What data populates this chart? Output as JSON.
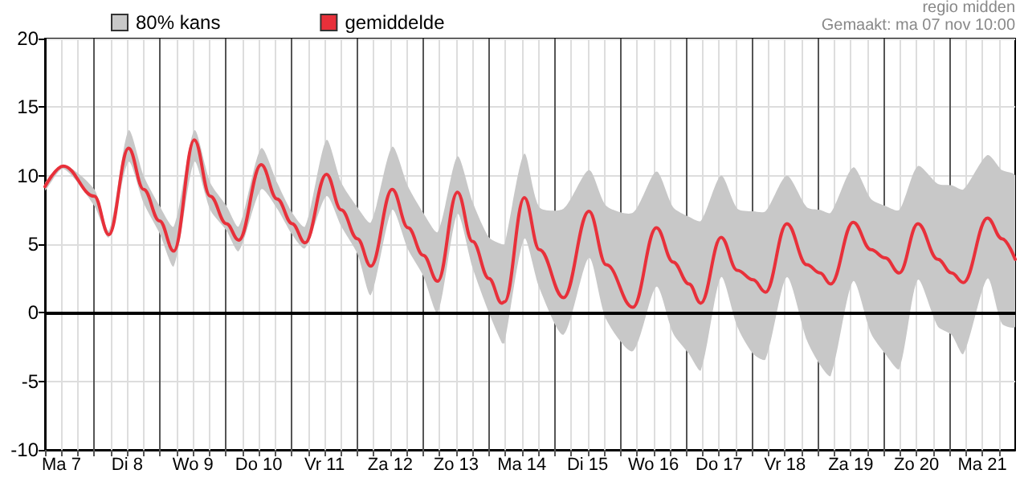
{
  "chart_data": {
    "type": "line",
    "annotations": [
      "regio midden",
      "Gemaakt: ma 07 nov 10:00"
    ],
    "x": [
      "--11-07T06:00",
      "--11-07T12:42",
      "--11-08T00:00",
      "--11-08T05:18",
      "--11-08T12:30",
      "--11-08T18:00",
      "--11-08T23:48",
      "--11-09T05:00",
      "--11-09T12:30",
      "--11-09T18:18",
      "--11-10T00:12",
      "--11-10T04:42",
      "--11-10T12:54",
      "--11-10T18:42",
      "--11-11T00:12",
      "--11-11T04:54",
      "--11-11T12:42",
      "--11-11T18:06",
      "--11-12T00:00",
      "--11-12T04:54",
      "--11-12T12:42",
      "--11-12T18:30",
      "--11-13T00:00",
      "--11-13T05:18",
      "--11-13T12:30",
      "--11-13T18:00",
      "--11-14T00:00",
      "--11-14T04:42",
      "--11-14T05:42",
      "--11-14T12:54",
      "--11-14T18:24",
      "--11-15T03:12",
      "--11-15T12:30",
      "--11-15T18:48",
      "--11-16T04:30",
      "--11-16T13:06",
      "--11-16T19:12",
      "--11-17T01:00",
      "--11-17T05:18",
      "--11-17T12:42",
      "--11-17T18:36",
      "--11-18T00:24",
      "--11-18T04:54",
      "--11-18T12:42",
      "--11-18T20:00",
      "--11-19T00:48",
      "--11-19T04:42",
      "--11-19T12:54",
      "--11-19T19:24",
      "--11-20T00:36",
      "--11-20T05:42",
      "--11-20T12:30",
      "--11-20T19:48",
      "--11-21T00:48",
      "--11-21T05:06",
      "--11-21T13:54",
      "--11-21T19:12",
      "--11-22T00:00"
    ],
    "series": [
      {
        "name": "80% kans",
        "type": "area",
        "color": "#c8c8c8",
        "values": [
          null,
          null,
          null,
          null,
          null,
          null,
          null,
          null,
          null,
          null,
          null,
          null,
          null,
          null,
          null,
          null,
          null,
          null,
          null,
          null,
          null,
          null,
          null,
          null,
          null,
          null,
          null,
          null,
          null,
          null,
          null,
          null,
          null,
          null,
          null,
          null,
          null,
          null,
          null,
          null,
          null,
          null,
          null,
          null,
          null,
          null,
          null,
          null,
          null,
          null,
          null,
          null,
          null,
          null,
          null,
          null,
          null,
          null
        ],
        "lower": [
          8.9,
          10.5,
          7.8,
          5.5,
          11.0,
          8.0,
          5.8,
          3.4,
          11.0,
          7.5,
          6.0,
          4.5,
          9.0,
          7.6,
          5.7,
          4.7,
          8.5,
          6.3,
          4.3,
          1.3,
          7.5,
          4.6,
          2.7,
          0.0,
          7.2,
          3.3,
          0.0,
          -2.2,
          -2.2,
          5.4,
          1.8,
          -1.6,
          4.0,
          -0.5,
          -2.8,
          1.9,
          -1.5,
          -3.0,
          -4.2,
          2.6,
          -1.0,
          -3.0,
          -3.4,
          2.6,
          -2.0,
          -3.8,
          -4.6,
          2.3,
          -1.5,
          -3.0,
          -4.1,
          2.4,
          -1.0,
          -1.6,
          -3.0,
          2.5,
          -0.8,
          -1.0
        ],
        "upper": [
          9.5,
          10.8,
          9.0,
          6.0,
          13.3,
          10.0,
          7.8,
          6.3,
          13.3,
          9.5,
          7.8,
          6.3,
          12.0,
          9.5,
          7.3,
          6.3,
          12.6,
          9.5,
          7.7,
          6.6,
          12.1,
          9.2,
          7.3,
          5.9,
          11.4,
          8.1,
          5.5,
          5.0,
          5.0,
          11.6,
          7.7,
          7.6,
          10.4,
          7.8,
          7.3,
          10.3,
          7.7,
          7.0,
          6.7,
          10.0,
          7.6,
          7.4,
          7.4,
          10.0,
          7.7,
          7.5,
          7.3,
          10.6,
          8.3,
          7.8,
          7.5,
          10.7,
          9.4,
          9.3,
          9.0,
          11.5,
          10.4,
          10.0
        ]
      },
      {
        "name": "gemiddelde",
        "color": "#e8303a",
        "values": [
          9.2,
          10.7,
          8.5,
          5.7,
          12.0,
          9.0,
          6.7,
          4.5,
          12.6,
          8.5,
          6.5,
          5.3,
          10.8,
          8.3,
          6.5,
          5.1,
          10.1,
          7.5,
          5.4,
          3.4,
          9.0,
          6.2,
          4.2,
          2.3,
          8.8,
          5.2,
          2.5,
          0.7,
          0.8,
          8.4,
          4.6,
          1.1,
          7.4,
          3.5,
          0.4,
          6.2,
          3.7,
          2.1,
          0.7,
          5.5,
          3.1,
          2.4,
          1.5,
          6.5,
          3.5,
          2.9,
          2.1,
          6.6,
          4.6,
          4.0,
          2.9,
          6.5,
          3.9,
          2.9,
          2.2,
          6.9,
          5.4,
          3.9
        ]
      }
    ],
    "xlim": [
      "--11-07T06:00",
      "--11-22T00:00"
    ],
    "xticks": [
      {
        "value": "--11-07T06:00",
        "label": null
      },
      {
        "value": "--11-07T12:00",
        "label": "Ma 7"
      },
      {
        "value": "--11-07T18:00",
        "label": null
      },
      {
        "value": "--11-08T00:00",
        "label": null
      },
      {
        "value": "--11-08T06:00",
        "label": null
      },
      {
        "value": "--11-08T12:00",
        "label": "Di 8"
      },
      {
        "value": "--11-08T18:00",
        "label": null
      },
      {
        "value": "--11-09T00:00",
        "label": null
      },
      {
        "value": "--11-09T06:00",
        "label": null
      },
      {
        "value": "--11-09T12:00",
        "label": "Wo 9"
      },
      {
        "value": "--11-09T18:00",
        "label": null
      },
      {
        "value": "--11-10T00:00",
        "label": null
      },
      {
        "value": "--11-10T06:00",
        "label": null
      },
      {
        "value": "--11-10T12:00",
        "label": "Do 10"
      },
      {
        "value": "--11-10T18:00",
        "label": null
      },
      {
        "value": "--11-11T00:00",
        "label": null
      },
      {
        "value": "--11-11T06:00",
        "label": null
      },
      {
        "value": "--11-11T12:00",
        "label": "Vr 11"
      },
      {
        "value": "--11-11T18:00",
        "label": null
      },
      {
        "value": "--11-12T00:00",
        "label": null
      },
      {
        "value": "--11-12T06:00",
        "label": null
      },
      {
        "value": "--11-12T12:00",
        "label": "Za 12"
      },
      {
        "value": "--11-12T18:00",
        "label": null
      },
      {
        "value": "--11-13T00:00",
        "label": null
      },
      {
        "value": "--11-13T06:00",
        "label": null
      },
      {
        "value": "--11-13T12:00",
        "label": "Zo 13"
      },
      {
        "value": "--11-13T18:00",
        "label": null
      },
      {
        "value": "--11-14T00:00",
        "label": null
      },
      {
        "value": "--11-14T06:00",
        "label": null
      },
      {
        "value": "--11-14T12:00",
        "label": "Ma 14"
      },
      {
        "value": "--11-14T18:00",
        "label": null
      },
      {
        "value": "--11-15T00:00",
        "label": null
      },
      {
        "value": "--11-15T06:00",
        "label": null
      },
      {
        "value": "--11-15T12:00",
        "label": "Di 15"
      },
      {
        "value": "--11-15T18:00",
        "label": null
      },
      {
        "value": "--11-16T00:00",
        "label": null
      },
      {
        "value": "--11-16T06:00",
        "label": null
      },
      {
        "value": "--11-16T12:00",
        "label": "Wo 16"
      },
      {
        "value": "--11-16T18:00",
        "label": null
      },
      {
        "value": "--11-17T00:00",
        "label": null
      },
      {
        "value": "--11-17T06:00",
        "label": null
      },
      {
        "value": "--11-17T12:00",
        "label": "Do 17"
      },
      {
        "value": "--11-17T18:00",
        "label": null
      },
      {
        "value": "--11-18T00:00",
        "label": null
      },
      {
        "value": "--11-18T06:00",
        "label": null
      },
      {
        "value": "--11-18T12:00",
        "label": "Vr 18"
      },
      {
        "value": "--11-18T18:00",
        "label": null
      },
      {
        "value": "--11-19T00:00",
        "label": null
      },
      {
        "value": "--11-19T06:00",
        "label": null
      },
      {
        "value": "--11-19T12:00",
        "label": "Za 19"
      },
      {
        "value": "--11-19T18:00",
        "label": null
      },
      {
        "value": "--11-20T00:00",
        "label": null
      },
      {
        "value": "--11-20T06:00",
        "label": null
      },
      {
        "value": "--11-20T12:00",
        "label": "Zo 20"
      },
      {
        "value": "--11-20T18:00",
        "label": null
      },
      {
        "value": "--11-21T00:00",
        "label": null
      },
      {
        "value": "--11-21T06:00",
        "label": null
      },
      {
        "value": "--11-21T12:00",
        "label": "Ma 21"
      },
      {
        "value": "--11-21T18:00",
        "label": null
      }
    ],
    "ylim": [
      -10,
      20
    ],
    "yticks": [
      -10,
      -5,
      0,
      5,
      10,
      15,
      20
    ],
    "ref_lines": [
      {
        "axis": "y",
        "value": 0,
        "label": null,
        "color": "#000000"
      }
    ],
    "grid": true,
    "legend": "top left",
    "marker": "none",
    "line_style": "solid"
  }
}
